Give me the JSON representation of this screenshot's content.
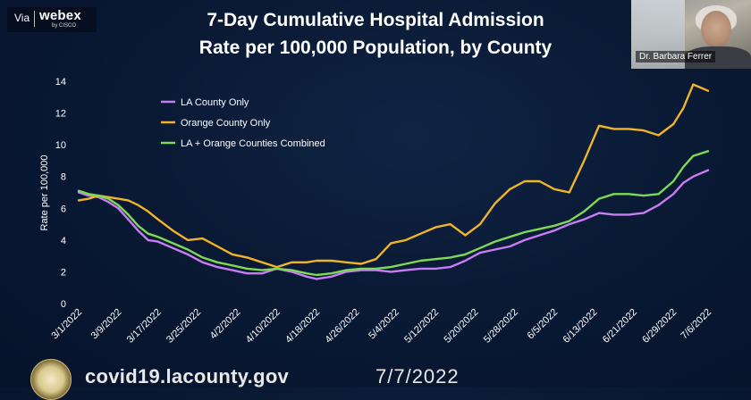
{
  "overlay": {
    "via": "Via",
    "brand": "webex",
    "brand_sub": "by CISCO",
    "presenter_name": "Dr. Barbara Ferrer"
  },
  "slide": {
    "title_line1": "7-Day Cumulative Hospital Admission",
    "title_line2": "Rate per 100,000 Population, by County",
    "footer_url": "covid19.lacounty.gov",
    "footer_date": "7/7/2022"
  },
  "chart_data": {
    "type": "line",
    "ylabel": "Rate per 100,000",
    "xlabel": "",
    "ylim": [
      0,
      14
    ],
    "yticks": [
      0,
      2,
      4,
      6,
      8,
      10,
      12,
      14
    ],
    "grid": false,
    "legend_position": "top-left",
    "x_ticks": [
      "3/1/2022",
      "3/9/2022",
      "3/17/2022",
      "3/25/2022",
      "4/2/2022",
      "4/10/2022",
      "4/18/2022",
      "4/26/2022",
      "5/4/2022",
      "5/12/2022",
      "5/20/2022",
      "5/28/2022",
      "6/5/2022",
      "6/13/2022",
      "6/21/2022",
      "6/29/2022",
      "7/6/2022"
    ],
    "x_start": "2022-03-01",
    "x_end": "2022-07-06",
    "series": [
      {
        "name": "LA County Only",
        "color": "#c77df3",
        "x": [
          "2022-03-01",
          "2022-03-03",
          "2022-03-05",
          "2022-03-07",
          "2022-03-09",
          "2022-03-11",
          "2022-03-13",
          "2022-03-15",
          "2022-03-17",
          "2022-03-20",
          "2022-03-23",
          "2022-03-26",
          "2022-03-29",
          "2022-04-01",
          "2022-04-04",
          "2022-04-07",
          "2022-04-10",
          "2022-04-13",
          "2022-04-16",
          "2022-04-18",
          "2022-04-21",
          "2022-04-24",
          "2022-04-27",
          "2022-04-30",
          "2022-05-03",
          "2022-05-06",
          "2022-05-09",
          "2022-05-12",
          "2022-05-15",
          "2022-05-18",
          "2022-05-21",
          "2022-05-24",
          "2022-05-27",
          "2022-05-30",
          "2022-06-02",
          "2022-06-05",
          "2022-06-08",
          "2022-06-11",
          "2022-06-14",
          "2022-06-17",
          "2022-06-20",
          "2022-06-23",
          "2022-06-26",
          "2022-06-29",
          "2022-07-01",
          "2022-07-03",
          "2022-07-06"
        ],
        "values": [
          7.0,
          6.8,
          6.7,
          6.4,
          6.0,
          5.3,
          4.6,
          4.0,
          3.9,
          3.5,
          3.1,
          2.6,
          2.3,
          2.1,
          1.9,
          1.9,
          2.2,
          2.0,
          1.7,
          1.55,
          1.7,
          2.0,
          2.1,
          2.1,
          2.0,
          2.1,
          2.2,
          2.2,
          2.3,
          2.7,
          3.2,
          3.4,
          3.6,
          4.0,
          4.3,
          4.6,
          5.0,
          5.3,
          5.7,
          5.6,
          5.6,
          5.7,
          6.2,
          6.9,
          7.6,
          8.0,
          8.4
        ]
      },
      {
        "name": "Orange County Only",
        "color": "#f0b429",
        "x": [
          "2022-03-01",
          "2022-03-03",
          "2022-03-05",
          "2022-03-07",
          "2022-03-09",
          "2022-03-11",
          "2022-03-13",
          "2022-03-15",
          "2022-03-17",
          "2022-03-20",
          "2022-03-23",
          "2022-03-26",
          "2022-03-29",
          "2022-04-01",
          "2022-04-04",
          "2022-04-07",
          "2022-04-10",
          "2022-04-13",
          "2022-04-16",
          "2022-04-18",
          "2022-04-21",
          "2022-04-24",
          "2022-04-27",
          "2022-04-30",
          "2022-05-03",
          "2022-05-06",
          "2022-05-09",
          "2022-05-12",
          "2022-05-15",
          "2022-05-18",
          "2022-05-21",
          "2022-05-24",
          "2022-05-27",
          "2022-05-30",
          "2022-06-02",
          "2022-06-05",
          "2022-06-08",
          "2022-06-11",
          "2022-06-14",
          "2022-06-17",
          "2022-06-20",
          "2022-06-23",
          "2022-06-26",
          "2022-06-29",
          "2022-07-01",
          "2022-07-03",
          "2022-07-06"
        ],
        "values": [
          6.5,
          6.6,
          6.8,
          6.7,
          6.6,
          6.5,
          6.2,
          5.8,
          5.3,
          4.6,
          4.0,
          4.1,
          3.6,
          3.1,
          2.9,
          2.6,
          2.3,
          2.6,
          2.6,
          2.7,
          2.7,
          2.6,
          2.5,
          2.8,
          3.8,
          4.0,
          4.4,
          4.8,
          5.0,
          4.3,
          5.0,
          6.3,
          7.2,
          7.7,
          7.7,
          7.2,
          7.0,
          9.0,
          11.2,
          11.0,
          11.0,
          10.9,
          10.6,
          11.3,
          12.3,
          13.8,
          13.4
        ]
      },
      {
        "name": "LA + Orange Counties Combined",
        "color": "#7ed957",
        "x": [
          "2022-03-01",
          "2022-03-03",
          "2022-03-05",
          "2022-03-07",
          "2022-03-09",
          "2022-03-11",
          "2022-03-13",
          "2022-03-15",
          "2022-03-17",
          "2022-03-20",
          "2022-03-23",
          "2022-03-26",
          "2022-03-29",
          "2022-04-01",
          "2022-04-04",
          "2022-04-07",
          "2022-04-10",
          "2022-04-13",
          "2022-04-16",
          "2022-04-18",
          "2022-04-21",
          "2022-04-24",
          "2022-04-27",
          "2022-04-30",
          "2022-05-03",
          "2022-05-06",
          "2022-05-09",
          "2022-05-12",
          "2022-05-15",
          "2022-05-18",
          "2022-05-21",
          "2022-05-24",
          "2022-05-27",
          "2022-05-30",
          "2022-06-02",
          "2022-06-05",
          "2022-06-08",
          "2022-06-11",
          "2022-06-14",
          "2022-06-17",
          "2022-06-20",
          "2022-06-23",
          "2022-06-26",
          "2022-06-29",
          "2022-07-01",
          "2022-07-03",
          "2022-07-06"
        ],
        "values": [
          7.1,
          6.9,
          6.8,
          6.6,
          6.2,
          5.6,
          4.9,
          4.4,
          4.2,
          3.8,
          3.4,
          2.9,
          2.6,
          2.4,
          2.2,
          2.1,
          2.2,
          2.1,
          1.9,
          1.8,
          1.9,
          2.1,
          2.2,
          2.2,
          2.3,
          2.5,
          2.7,
          2.8,
          2.9,
          3.1,
          3.5,
          3.9,
          4.2,
          4.5,
          4.7,
          4.9,
          5.2,
          5.8,
          6.6,
          6.9,
          6.9,
          6.8,
          6.9,
          7.7,
          8.6,
          9.3,
          9.6
        ]
      }
    ]
  }
}
